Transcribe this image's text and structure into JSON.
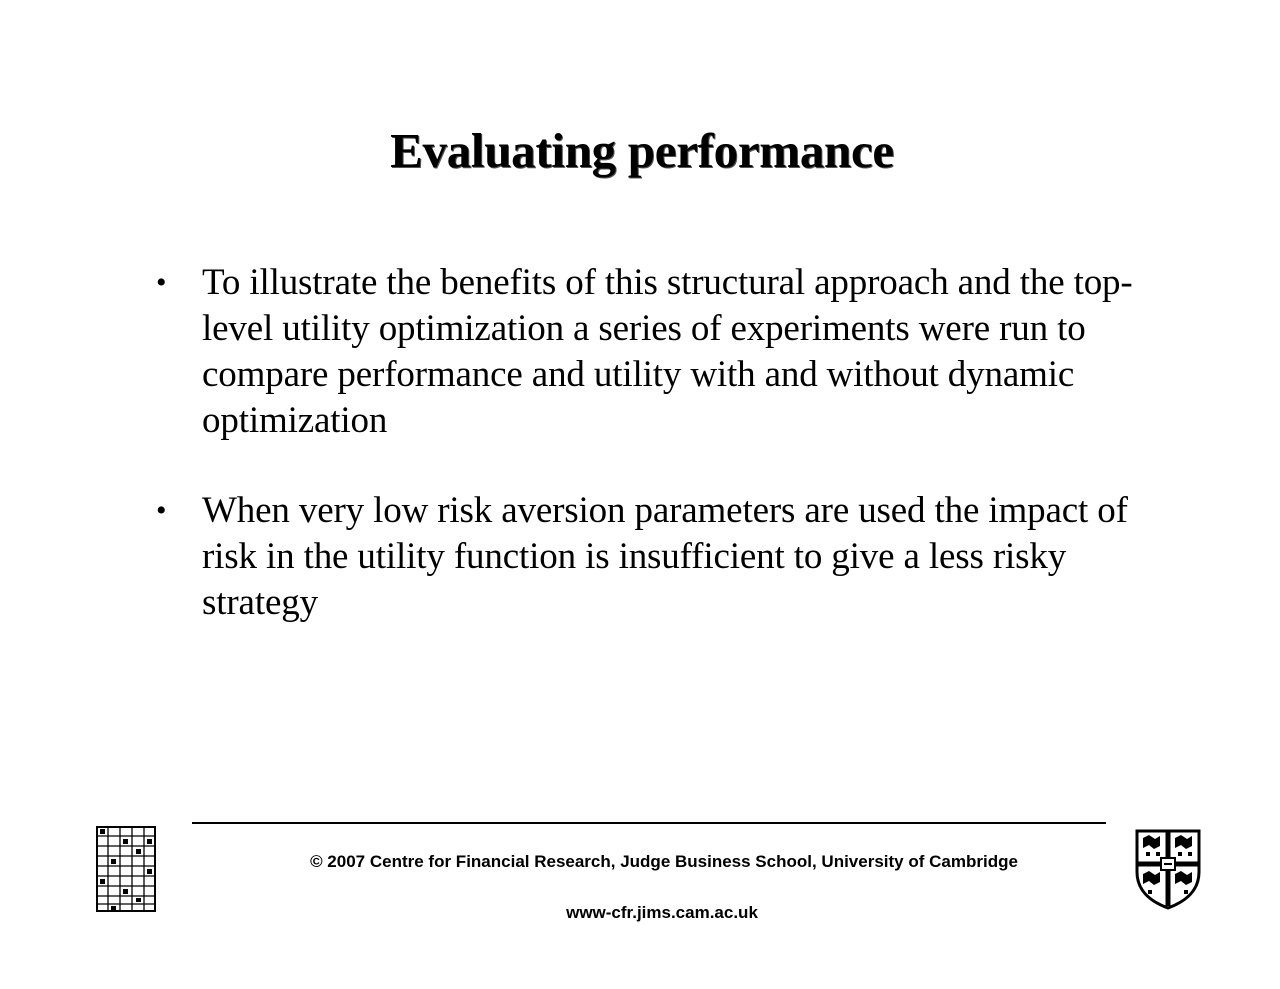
{
  "slide": {
    "title": "Evaluating performance",
    "bullets": [
      {
        "marker": "•",
        "text": "To illustrate the benefits of this structural approach and the top-level utility optimization a series of experiments were run to compare performance and utility with and without dynamic optimization"
      },
      {
        "marker": "•",
        "text": "When very low risk aversion parameters are used the impact of risk in the utility function is insufficient to give a less risky strategy"
      }
    ]
  },
  "footer": {
    "copyright": "© 2007 Centre for Financial Research,  Judge Business School,  University of Cambridge",
    "url": "www-cfr.jims.cam.ac.uk"
  },
  "logos": {
    "left_icon": "jbs-building-logo-icon",
    "right_icon": "cambridge-shield-icon"
  }
}
